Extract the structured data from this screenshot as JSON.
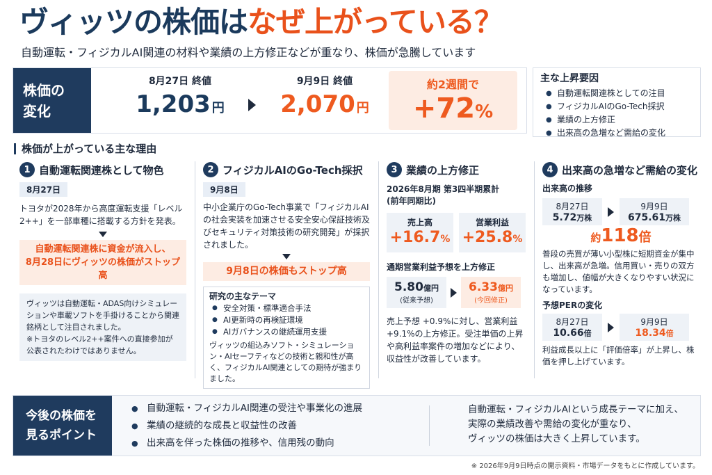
{
  "header": {
    "title_part1": "ヴィッツの株価は",
    "title_part2": "なぜ上がっている？",
    "subtitle": "自動運転・フィジカルAI関連の材料や業績の上方修正などが重なり、株価が急騰しています"
  },
  "change": {
    "label_line1": "株価の",
    "label_line2": "変化",
    "from_label": "8月27日 終値",
    "from_value": "1,203",
    "from_unit": "円",
    "to_label": "9月9日 終値",
    "to_value": "2,070",
    "to_unit": "円",
    "pct_label": "約2週間で",
    "pct_value": "+72",
    "pct_unit": "%"
  },
  "factors": {
    "title": "主な上昇要因",
    "items": [
      "自動運転関連株としての注目",
      "フィジカルAIのGo-Tech採択",
      "業績の上方修正",
      "出来高の急増など需給の変化"
    ]
  },
  "reasons": {
    "heading": "株価が上がっている主な理由",
    "r1": {
      "num": "1",
      "title": "自動運転関連株として物色",
      "date": "8月27日",
      "text": "トヨタが2028年から高度運転支援「レベル2++」を一部車種に搭載する方針を発表。",
      "highlight_line1": "自動運転関連株に資金が流入し、",
      "highlight_line2": "8月28日にヴィッツの株価がストップ高",
      "note_line1": "ヴィッツは自動運転・ADAS向けシミュレーションや車載ソフトを手掛けることから関連銘柄として注目されました。",
      "note_line2": "※トヨタのレベル2++案件への直接参加が公表されたわけではありません。"
    },
    "r2": {
      "num": "2",
      "title": "フィジカルAIのGo-Tech採択",
      "date": "9月8日",
      "text": "中小企業庁のGo-Tech事業で「フィジカルAIの社会実装を加速させる安全安心保証技術及びセキュリティ対策技術の研究開発」が採択されました。",
      "highlight": "9月8日の株価もストップ高",
      "theme_title": "研究の主なテーマ",
      "themes": [
        "安全対策・標準適合手法",
        "AI更新時の再検証環境",
        "AIガバナンスの継続運用支援"
      ],
      "footer": "ヴィッツの組込みソフト・シミュレーション・AIセーフティなどの技術と親和性が高く、フィジカルAI関連としての期待が強まりました。"
    },
    "r3": {
      "num": "3",
      "title": "業績の上方修正",
      "period": "2026年8月期 第3四半期累計",
      "period_note": "(前年同期比)",
      "sales_label": "売上高",
      "sales_value": "+16.7",
      "op_label": "営業利益",
      "op_value": "+25.8",
      "pct_unit": "%",
      "forecast_title": "通期営業利益予想を上方修正",
      "old_value": "5.80",
      "old_unit": "億円",
      "old_note": "(従来予想)",
      "new_value": "6.33",
      "new_unit": "億円",
      "new_note": "(今回修正)",
      "footer": "売上予想 +0.9%に対し、営業利益 +9.1%の上方修正。受注単価の上昇や高利益率案件の増加などにより、収益性が改善しています。"
    },
    "r4": {
      "num": "4",
      "title": "出来高の急増など需給の変化",
      "vol_title": "出来高の推移",
      "vol_from_date": "8月27日",
      "vol_from_value": "5.72",
      "vol_unit": "万株",
      "vol_to_date": "9月9日",
      "vol_to_value": "675.61",
      "multiple_prefix": "約",
      "multiple_value": "118",
      "multiple_unit": "倍",
      "vol_text": "普段の売買が薄い小型株に短期資金が集中し、出来高が急増。信用買い・売りの双方も増加し、値幅が大きくなりやすい状況になっています。",
      "per_title": "予想PERの変化",
      "per_from_date": "8月27日",
      "per_from_value": "10.66",
      "per_unit": "倍",
      "per_to_date": "9月9日",
      "per_to_value": "18.34",
      "per_text": "利益成長以上に「評価倍率」が上昇し、株価を押し上げています。"
    }
  },
  "bottom": {
    "label_line1": "今後の株価を",
    "label_line2": "見るポイント",
    "points": [
      "自動運転・フィジカルAI関連の受注や事業化の進展",
      "業績の継続的な成長と収益性の改善",
      "出来高を伴った株価の推移や、信用残の動向"
    ],
    "summary_line1": "自動運転・フィジカルAIという成長テーマに加え、",
    "summary_line2": "実際の業績改善や需給の変化が重なり、",
    "summary_line3": "ヴィッツの株価は大きく上昇しています。"
  },
  "footnote": "※ 2026年9月9日時点の開示資料・市場データをもとに作成しています。",
  "colors": {
    "navy": "#1f3b5e",
    "orange": "#ee5a1f",
    "light_orange": "#fdece3",
    "light_blue": "#eef2f7"
  }
}
